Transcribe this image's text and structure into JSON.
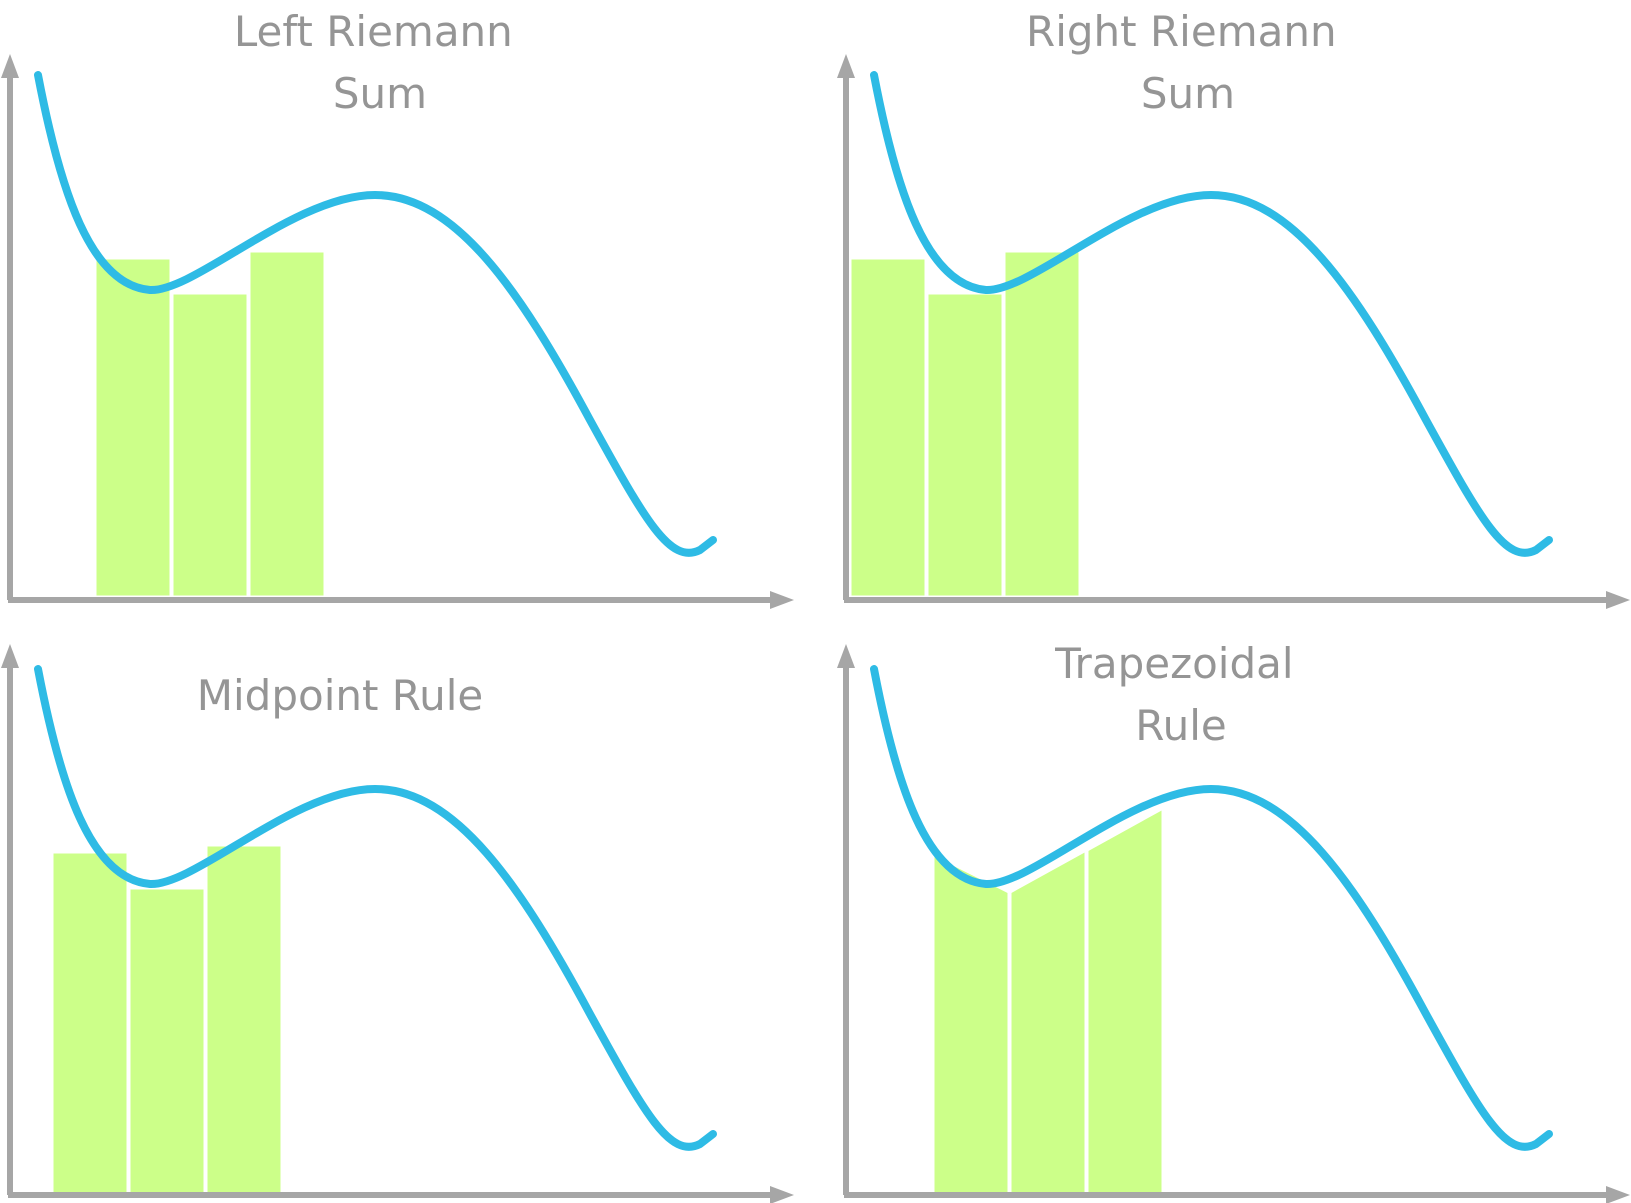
{
  "panels": [
    {
      "key": "left",
      "title_lines": [
        "Left Riemann",
        "Sum"
      ]
    },
    {
      "key": "right",
      "title_lines": [
        "Right Riemann",
        "Sum"
      ]
    },
    {
      "key": "midpoint",
      "title_lines": [
        "Midpoint Rule"
      ]
    },
    {
      "key": "trapezoid",
      "title_lines": [
        "Trapezoidal",
        "Rule"
      ]
    }
  ],
  "colors": {
    "axis": "#a6a6a6",
    "curve": "#2ebbe5",
    "approximation_fill": "#c6ff7c",
    "title_text": "#959595"
  }
}
